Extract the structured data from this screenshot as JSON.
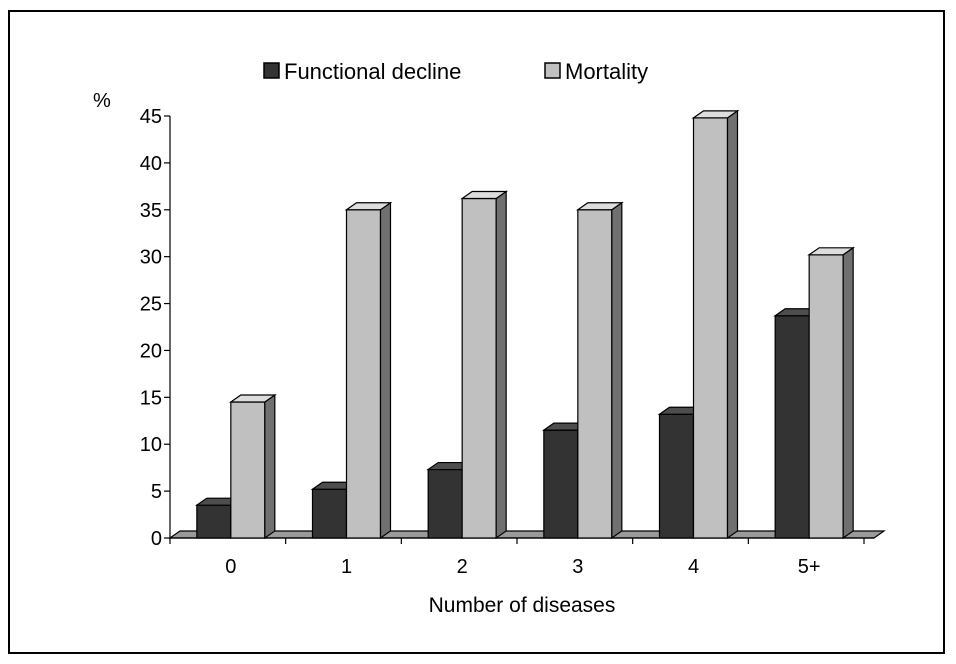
{
  "colors": {
    "functional_front": "#333333",
    "functional_side": "#1a1a1a",
    "functional_top": "#4d4d4d",
    "mortality_front": "#c0c0c0",
    "mortality_side": "#707070",
    "mortality_top": "#dddddd",
    "floor": "#9a9a9a"
  },
  "chart_data": {
    "type": "bar",
    "title": "",
    "xlabel": "Number of diseases",
    "ylabel": "%",
    "ylim": [
      0,
      45
    ],
    "yticks": [
      0,
      5,
      10,
      15,
      20,
      25,
      30,
      35,
      40,
      45
    ],
    "categories": [
      "0",
      "1",
      "2",
      "3",
      "4",
      "5+"
    ],
    "legend_position": "top",
    "series": [
      {
        "name": "Functional decline",
        "values": [
          3.5,
          5.2,
          7.3,
          11.5,
          13.2,
          23.7
        ]
      },
      {
        "name": "Mortality",
        "values": [
          14.5,
          35,
          36.2,
          35,
          44.8,
          30.2
        ]
      }
    ]
  }
}
